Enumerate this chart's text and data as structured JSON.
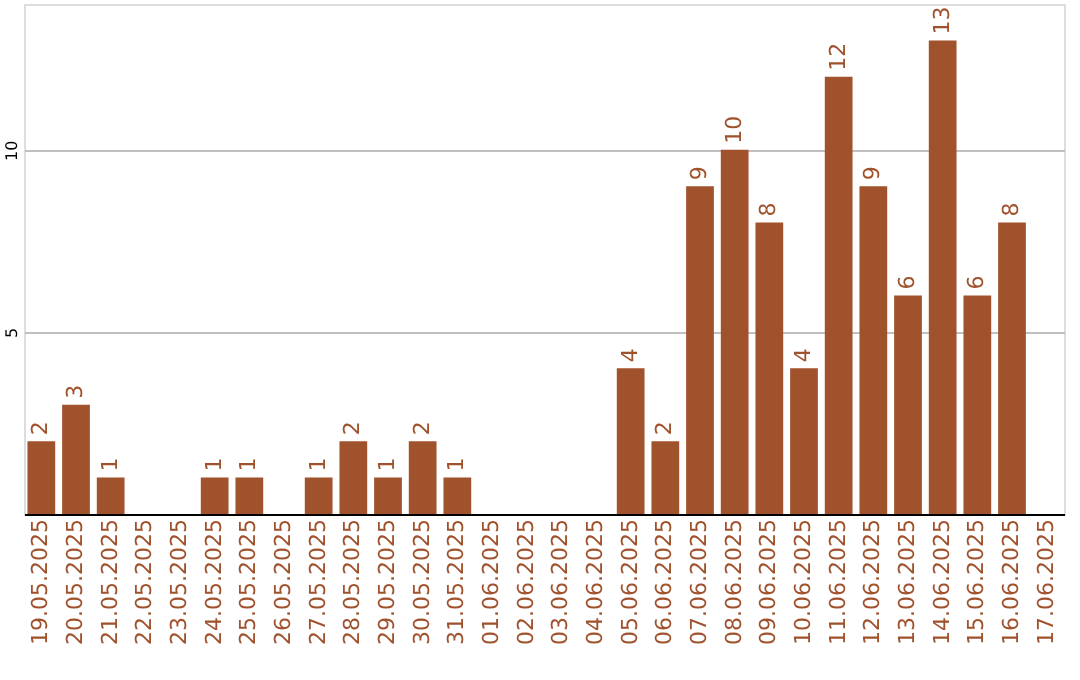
{
  "chart_data": {
    "type": "bar",
    "categories": [
      "19.05.2025",
      "20.05.2025",
      "21.05.2025",
      "22.05.2025",
      "23.05.2025",
      "24.05.2025",
      "25.05.2025",
      "26.05.2025",
      "27.05.2025",
      "28.05.2025",
      "29.05.2025",
      "30.05.2025",
      "31.05.2025",
      "01.06.2025",
      "02.06.2025",
      "03.06.2025",
      "04.06.2025",
      "05.06.2025",
      "06.06.2025",
      "07.06.2025",
      "08.06.2025",
      "09.06.2025",
      "10.06.2025",
      "11.06.2025",
      "12.06.2025",
      "13.06.2025",
      "14.06.2025",
      "15.06.2025",
      "16.06.2025",
      "17.06.2025"
    ],
    "values": [
      2,
      3,
      1,
      null,
      null,
      1,
      1,
      null,
      1,
      2,
      1,
      2,
      1,
      null,
      null,
      null,
      null,
      4,
      2,
      9,
      10,
      8,
      4,
      12,
      9,
      6,
      13,
      6,
      8,
      null
    ],
    "color": "#a0522d",
    "ylim": [
      0,
      14
    ],
    "yticks": [
      5,
      10
    ],
    "grid": "y",
    "data_labels": true
  }
}
